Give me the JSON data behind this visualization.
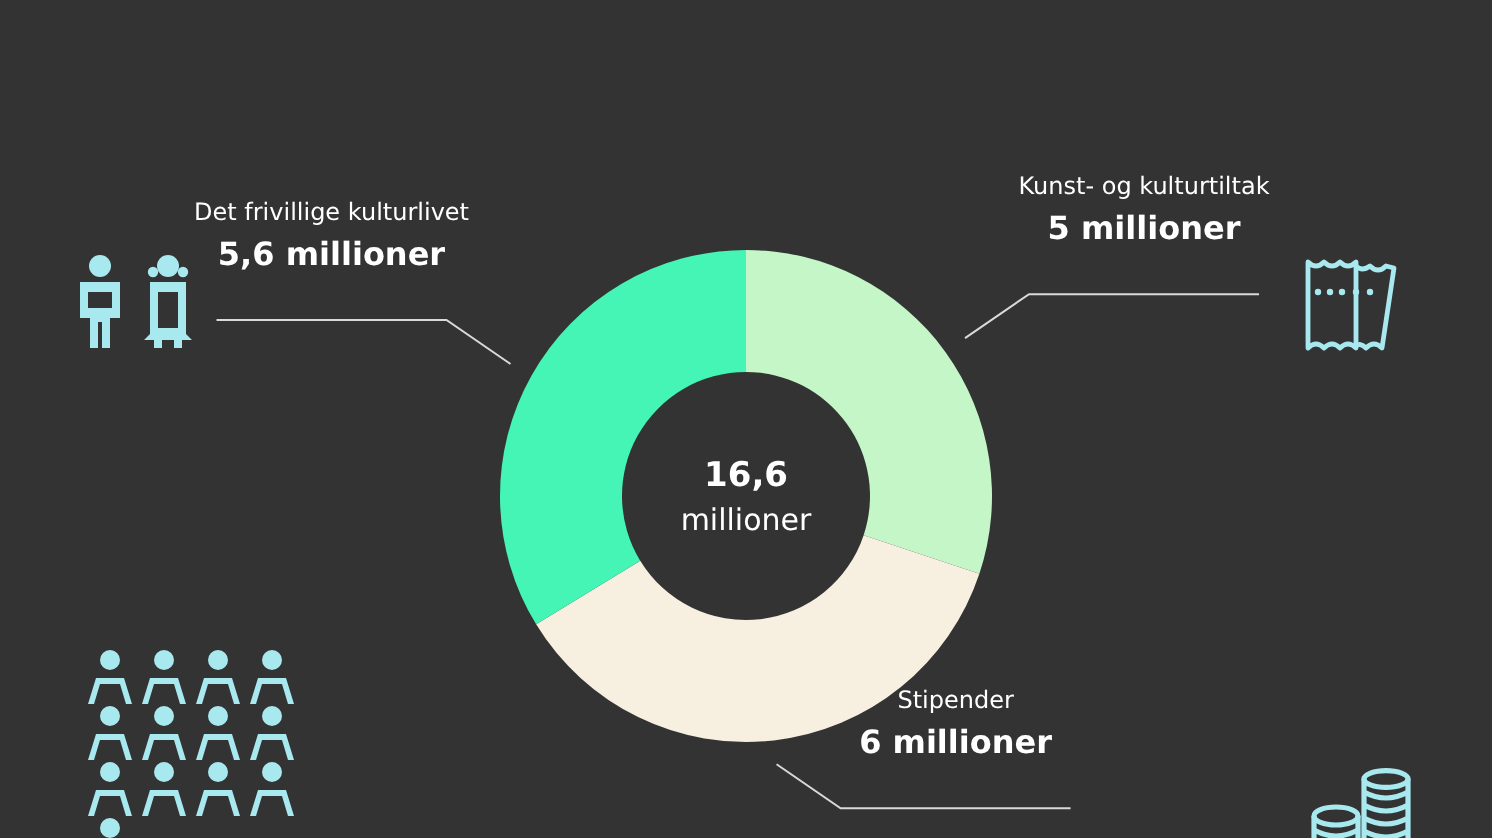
{
  "chart_data": {
    "type": "donut",
    "categories": [
      "Kunst- og kulturtiltak",
      "Stipender",
      "Det frivillige kulturlivet"
    ],
    "values": [
      5,
      6,
      5.6
    ],
    "value_labels": [
      "5 millioner",
      "6 millioner",
      "5,6 millioner"
    ],
    "colors": [
      "#c4f6c8",
      "#f7efdf",
      "#45f5b5"
    ],
    "annotations": [
      "16,6",
      "millioner"
    ]
  }
}
